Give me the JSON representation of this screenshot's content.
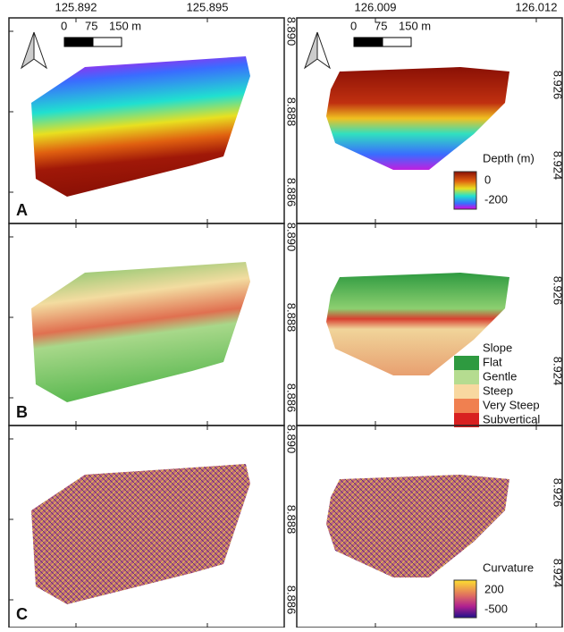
{
  "axes": {
    "top": [
      "125.892",
      "125.895",
      "126.009",
      "126.012"
    ],
    "left_column_lat": [
      "8.890",
      "8.888",
      "8.886"
    ],
    "right_column_lat": [
      "8.926",
      "8.924"
    ]
  },
  "scale_bar": {
    "labels": [
      "0",
      "75",
      "150 m"
    ]
  },
  "panels": [
    {
      "label": "A",
      "legend": {
        "title": "Depth (m)",
        "labels": [
          "0",
          "-200"
        ]
      }
    },
    {
      "label": "B",
      "legend": {
        "title": "Slope",
        "classes": [
          "Flat",
          "Gentle",
          "Steep",
          "Very Steep",
          "Subvertical"
        ]
      }
    },
    {
      "label": "C",
      "legend": {
        "title": "Curvature",
        "labels": [
          "200",
          "-500"
        ]
      }
    }
  ]
}
